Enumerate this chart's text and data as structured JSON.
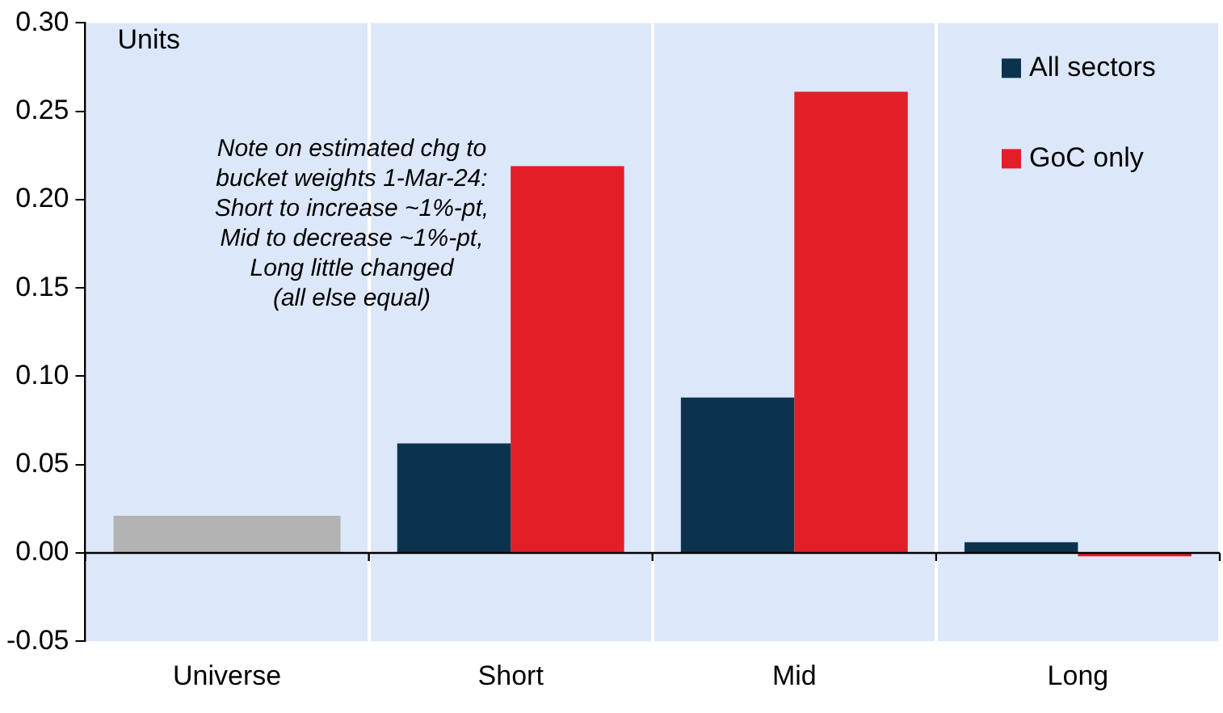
{
  "chart_data": {
    "type": "bar",
    "categories": [
      "Universe",
      "Short",
      "Mid",
      "Long"
    ],
    "series": [
      {
        "color": "#b3b3b3",
        "values": [
          0.021,
          null,
          null,
          null
        ]
      },
      {
        "name": "All sectors",
        "color": "#0b3350",
        "values": [
          null,
          0.062,
          0.088,
          0.006
        ]
      },
      {
        "name": "GoC only",
        "color": "#e31e26",
        "values": [
          null,
          0.219,
          0.261,
          -0.002
        ]
      }
    ],
    "ylim": [
      -0.05,
      0.3
    ],
    "yticks": [
      {
        "value": -0.05,
        "label": "-0.05"
      },
      {
        "value": 0,
        "label": "0.00"
      },
      {
        "value": 0.05,
        "label": "0.05"
      },
      {
        "value": 0.1,
        "label": "0.10"
      },
      {
        "value": 0.15,
        "label": "0.15"
      },
      {
        "value": 0.2,
        "label": "0.20"
      },
      {
        "value": 0.25,
        "label": "0.25"
      },
      {
        "value": 0.3,
        "label": "0.30"
      }
    ],
    "grid": "x",
    "legend": "top right",
    "annotations": [
      "Units",
      "Note on estimated chg to\nbucket weights 1-Mar-24:\nShort to increase ~1%-pt,\nMid to decrease ~1%-pt,\nLong little changed\n(all else equal)"
    ]
  }
}
